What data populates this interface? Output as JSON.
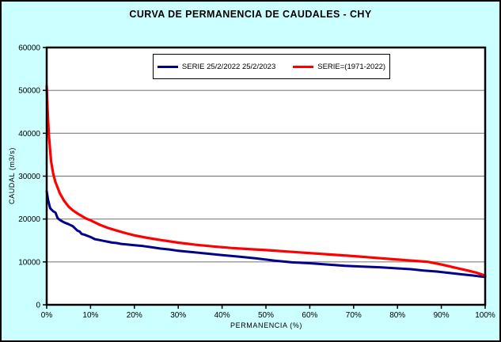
{
  "chart_data": {
    "type": "line",
    "title": "CURVA DE PERMANENCIA DE CAUDALES - CHY",
    "xlabel": "PERMANENCIA (%)",
    "ylabel": "CAUDAL (m3/s)",
    "xlim": [
      0,
      100
    ],
    "ylim": [
      0,
      60000
    ],
    "x_ticks": [
      0,
      10,
      20,
      30,
      40,
      50,
      60,
      70,
      80,
      90,
      100
    ],
    "x_tick_labels": [
      "0%",
      "10%",
      "20%",
      "30%",
      "40%",
      "50%",
      "60%",
      "70%",
      "80%",
      "90%",
      "100%"
    ],
    "y_ticks": [
      0,
      10000,
      20000,
      30000,
      40000,
      50000,
      60000
    ],
    "y_tick_labels": [
      "0",
      "10000",
      "20000",
      "30000",
      "40000",
      "50000",
      "60000"
    ],
    "grid": "horizontal-only",
    "legend_position": "top-center-inside",
    "colors": {
      "background": "#CCFFFF",
      "plot_background": "#FFFFFF",
      "gridline": "#808080",
      "axis": "#000000",
      "legend_border": "#000000"
    },
    "series": [
      {
        "name": "SERIE 25/2/2022 25/2/2023",
        "color": "#00008B",
        "stroke_width": 3,
        "x": [
          0,
          0.3,
          0.8,
          1,
          1.5,
          2,
          2.5,
          3,
          3.5,
          4,
          5,
          6,
          7,
          7.5,
          8,
          8.5,
          9,
          10,
          11,
          12,
          13,
          14,
          15,
          16,
          17,
          18,
          20,
          22,
          24,
          26,
          28,
          30,
          33,
          36,
          40,
          44,
          48,
          52,
          56,
          60,
          64,
          68,
          72,
          76,
          80,
          83,
          86,
          89,
          92,
          95,
          97,
          99,
          100
        ],
        "y": [
          26500,
          24500,
          22500,
          22300,
          21800,
          21500,
          20200,
          19800,
          19500,
          19200,
          18800,
          18300,
          17300,
          17100,
          16500,
          16400,
          16200,
          15800,
          15300,
          15100,
          14900,
          14700,
          14500,
          14400,
          14200,
          14100,
          13900,
          13700,
          13400,
          13100,
          12900,
          12600,
          12300,
          12000,
          11600,
          11200,
          10800,
          10300,
          9900,
          9700,
          9400,
          9100,
          8900,
          8750,
          8500,
          8300,
          8000,
          7750,
          7400,
          7050,
          6850,
          6600,
          6500
        ]
      },
      {
        "name": "SERIE=(1971-2022)",
        "color": "#FF0000",
        "stroke_width": 3.2,
        "x": [
          0,
          0.2,
          0.5,
          1,
          1.5,
          2,
          3,
          4,
          5,
          6,
          7,
          8,
          9,
          10,
          12,
          14,
          16,
          18,
          20,
          23,
          26,
          30,
          34,
          38,
          42,
          46,
          50,
          55,
          60,
          65,
          70,
          75,
          80,
          84,
          87,
          90,
          93,
          96,
          98,
          100
        ],
        "y": [
          51000,
          45500,
          39500,
          33500,
          30500,
          28600,
          26000,
          24200,
          22900,
          22000,
          21300,
          20700,
          20100,
          19700,
          18700,
          17900,
          17300,
          16700,
          16200,
          15600,
          15100,
          14500,
          14000,
          13600,
          13250,
          13000,
          12750,
          12400,
          12050,
          11700,
          11350,
          10950,
          10550,
          10250,
          10000,
          9400,
          8700,
          8000,
          7500,
          6800
        ]
      }
    ]
  }
}
